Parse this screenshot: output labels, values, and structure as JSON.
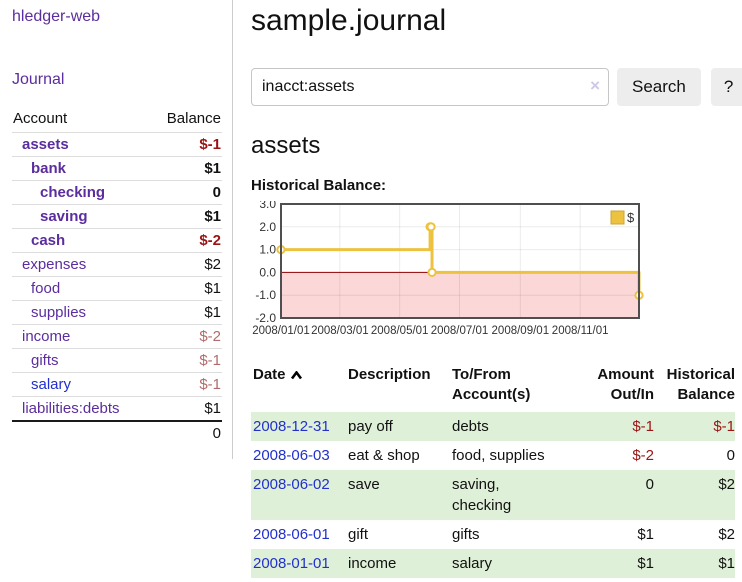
{
  "app": {
    "title": "hledger-web"
  },
  "colors": {
    "link_purple": "#5b2d9e",
    "link_blue": "#2230cc",
    "negative_strong": "#9b1414",
    "negative_muted": "#b36a6a",
    "row_stripe_green": "#dff0d8",
    "series_gold": "#edc240",
    "negative_region_pink": "#fcd7d7",
    "zero_line_red": "#8b0000",
    "chart_border": "#4f4f4f"
  },
  "sidebar": {
    "journal_label": "Journal",
    "headers": {
      "account": "Account",
      "balance": "Balance"
    },
    "accounts": [
      {
        "name": "assets",
        "balance": "$-1",
        "indent": 0,
        "bold": true,
        "balance_style": "neg-strong",
        "link_color": "purple"
      },
      {
        "name": "bank",
        "balance": "$1",
        "indent": 1,
        "bold": true,
        "balance_style": "plain",
        "link_color": "purple"
      },
      {
        "name": "checking",
        "balance": "0",
        "indent": 2,
        "bold": true,
        "balance_style": "plain",
        "link_color": "purple"
      },
      {
        "name": "saving",
        "balance": "$1",
        "indent": 2,
        "bold": true,
        "balance_style": "plain",
        "link_color": "purple"
      },
      {
        "name": "cash",
        "balance": "$-2",
        "indent": 1,
        "bold": true,
        "balance_style": "neg-strong",
        "link_color": "purple"
      },
      {
        "name": "expenses",
        "balance": "$2",
        "indent": 0,
        "bold": false,
        "balance_style": "plain",
        "link_color": "purple"
      },
      {
        "name": "food",
        "balance": "$1",
        "indent": 1,
        "bold": false,
        "balance_style": "plain",
        "link_color": "purple"
      },
      {
        "name": "supplies",
        "balance": "$1",
        "indent": 1,
        "bold": false,
        "balance_style": "plain",
        "link_color": "purple"
      },
      {
        "name": "income",
        "balance": "$-2",
        "indent": 0,
        "bold": false,
        "balance_style": "neg-muted",
        "link_color": "purple"
      },
      {
        "name": "gifts",
        "balance": "$-1",
        "indent": 1,
        "bold": false,
        "balance_style": "neg-muted",
        "link_color": "purple"
      },
      {
        "name": "salary",
        "balance": "$-1",
        "indent": 1,
        "bold": false,
        "balance_style": "neg-muted",
        "link_color": "blue"
      },
      {
        "name": "liabilities:debts",
        "balance": "$1",
        "indent": 0,
        "bold": false,
        "balance_style": "plain",
        "link_color": "purple"
      }
    ],
    "total": "0"
  },
  "main": {
    "title": "sample.journal",
    "search": {
      "value": "inacct:assets",
      "clear_icon": "×",
      "button_label": "Search",
      "help_label": "?"
    },
    "account_heading": "assets",
    "chart_label": "Historical Balance:"
  },
  "chart_data": {
    "type": "line",
    "title": "Historical Balance:",
    "step": true,
    "xlim_days": [
      0,
      365
    ],
    "ylim": [
      -2,
      3
    ],
    "y_ticks": [
      {
        "value": 3,
        "label": "3.0"
      },
      {
        "value": 2,
        "label": "2.0"
      },
      {
        "value": 1,
        "label": "1.0"
      },
      {
        "value": 0,
        "label": "0.0"
      },
      {
        "value": -1,
        "label": "-1.0"
      },
      {
        "value": -2,
        "label": "-2.0"
      }
    ],
    "x_ticks": [
      {
        "day": 0,
        "label": "2008/01/01"
      },
      {
        "day": 60,
        "label": "2008/03/01"
      },
      {
        "day": 121,
        "label": "2008/05/01"
      },
      {
        "day": 182,
        "label": "2008/07/01"
      },
      {
        "day": 244,
        "label": "2008/09/01"
      },
      {
        "day": 305,
        "label": "2008/11/01"
      }
    ],
    "series": [
      {
        "name": "$",
        "color": "#edc240",
        "points": [
          {
            "date": "2008/01/01",
            "day": 0,
            "value": 1
          },
          {
            "date": "2008/06/01",
            "day": 152,
            "value": 2
          },
          {
            "date": "2008/06/02",
            "day": 153,
            "value": 2
          },
          {
            "date": "2008/06/03",
            "day": 154,
            "value": 0
          },
          {
            "date": "2008/12/31",
            "day": 365,
            "value": -1
          }
        ]
      }
    ],
    "legend": {
      "label": "$",
      "position": "top-right"
    },
    "zero_line": true,
    "negative_region_shaded": true,
    "grid": true
  },
  "register": {
    "headers": {
      "date": "Date",
      "description": "Description",
      "accounts": "To/From Account(s)",
      "amount": "Amount Out/In",
      "balance": "Historical Balance"
    },
    "rows": [
      {
        "date": "2008-12-31",
        "description": "pay off",
        "accounts": [
          "debts"
        ],
        "amount": "$-1",
        "balance": "$-1"
      },
      {
        "date": "2008-06-03",
        "description": "eat & shop",
        "accounts": [
          "food, supplies"
        ],
        "amount": "$-2",
        "balance": "0"
      },
      {
        "date": "2008-06-02",
        "description": "save",
        "accounts": [
          "saving,",
          "checking"
        ],
        "amount": "0",
        "balance": "$2"
      },
      {
        "date": "2008-06-01",
        "description": "gift",
        "accounts": [
          "gifts"
        ],
        "amount": "$1",
        "balance": "$2"
      },
      {
        "date": "2008-01-01",
        "description": "income",
        "accounts": [
          "salary"
        ],
        "amount": "$1",
        "balance": "$1"
      }
    ]
  }
}
